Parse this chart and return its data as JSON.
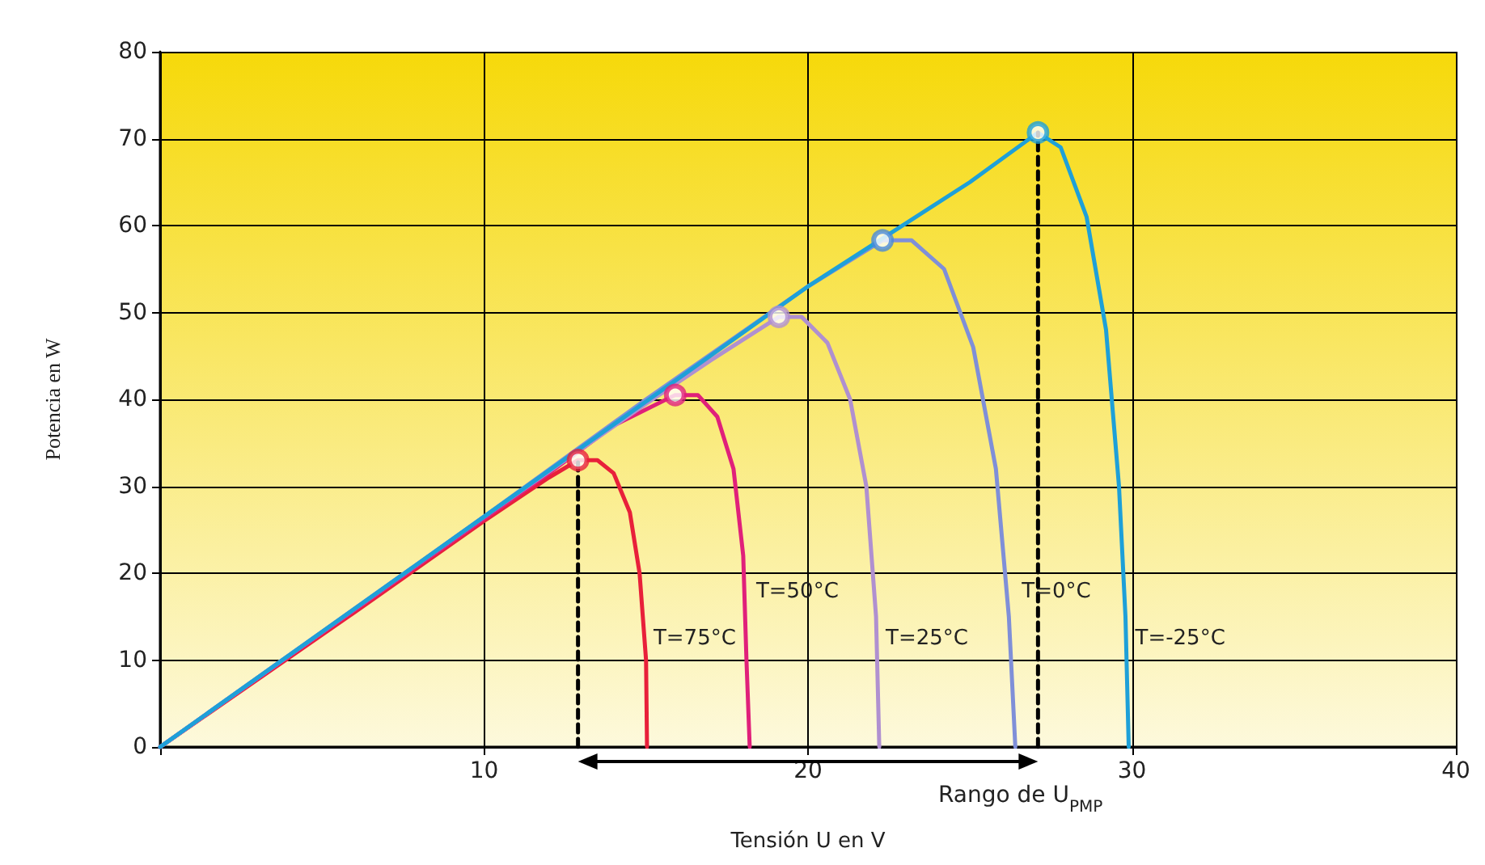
{
  "chart_data": {
    "type": "line",
    "xlabel": "Tensión U en V",
    "ylabel": "Potencia en W",
    "xlim": [
      0,
      40
    ],
    "xticks": [
      {
        "value": 0,
        "label": null
      },
      10,
      20,
      30,
      40
    ],
    "ylim": [
      0,
      80
    ],
    "yticks": [
      0,
      10,
      20,
      30,
      40,
      50,
      60,
      70,
      80
    ],
    "grid": true,
    "marker": "none",
    "line_style": "solid",
    "series": [
      {
        "color": "#e8203a",
        "x": [
          0,
          6,
          10,
          12,
          12.9,
          13.5,
          14,
          14.5,
          14.8,
          15,
          15.03
        ],
        "values": [
          0,
          15.5,
          26,
          31,
          33,
          33,
          31.5,
          27,
          20,
          10,
          0
        ]
      },
      {
        "color": "#e0207a",
        "x": [
          0,
          8,
          12,
          14,
          15.9,
          16.6,
          17.2,
          17.7,
          18,
          18.1,
          18.2
        ],
        "values": [
          0,
          21,
          31.5,
          37,
          40.5,
          40.5,
          38,
          32,
          22,
          10,
          0
        ]
      },
      {
        "color": "#b090d0",
        "x": [
          0,
          10,
          15,
          17,
          19.1,
          19.8,
          20.6,
          21.3,
          21.8,
          22.1,
          22.2
        ],
        "values": [
          0,
          26.5,
          39.5,
          44.5,
          49.5,
          49.5,
          46.5,
          40,
          30,
          15,
          0
        ]
      },
      {
        "color": "#7f8fd8",
        "x": [
          0,
          10,
          15,
          20,
          22.3,
          23.2,
          24.2,
          25.1,
          25.8,
          26.2,
          26.4
        ],
        "values": [
          0,
          26.5,
          40,
          53,
          58.3,
          58.3,
          55,
          46,
          32,
          15,
          0
        ]
      },
      {
        "color": "#1ea0d8",
        "x": [
          0,
          10,
          20,
          25,
          27.1,
          27.8,
          28.6,
          29.2,
          29.6,
          29.8,
          29.9
        ],
        "values": [
          0,
          26.5,
          53,
          65,
          70.7,
          69,
          61,
          48,
          30,
          15,
          0
        ]
      },
      {
        "type": "scatter",
        "marker": "circle",
        "colors": [
          "#e8203a",
          "#e0207a",
          "#b090d0",
          "#4a8ad8",
          "#1ea0d8"
        ],
        "x": [
          12.9,
          15.9,
          19.1,
          22.3,
          27.1
        ],
        "values": [
          33,
          40.5,
          49.5,
          58.3,
          70.7
        ]
      },
      {
        "color": "#000000",
        "line_style": "dashed",
        "x": [
          12.9,
          12.9
        ],
        "values": [
          0,
          33
        ]
      },
      {
        "color": "#000000",
        "line_style": "dashed",
        "x": [
          27.1,
          27.1
        ],
        "values": [
          0,
          70.7
        ]
      }
    ],
    "annotations": [
      "T=75°C",
      "T=50°C",
      "T=25°C",
      "T=0°C",
      "T=-25°C",
      "Rango de U$_{PMP}$"
    ]
  }
}
